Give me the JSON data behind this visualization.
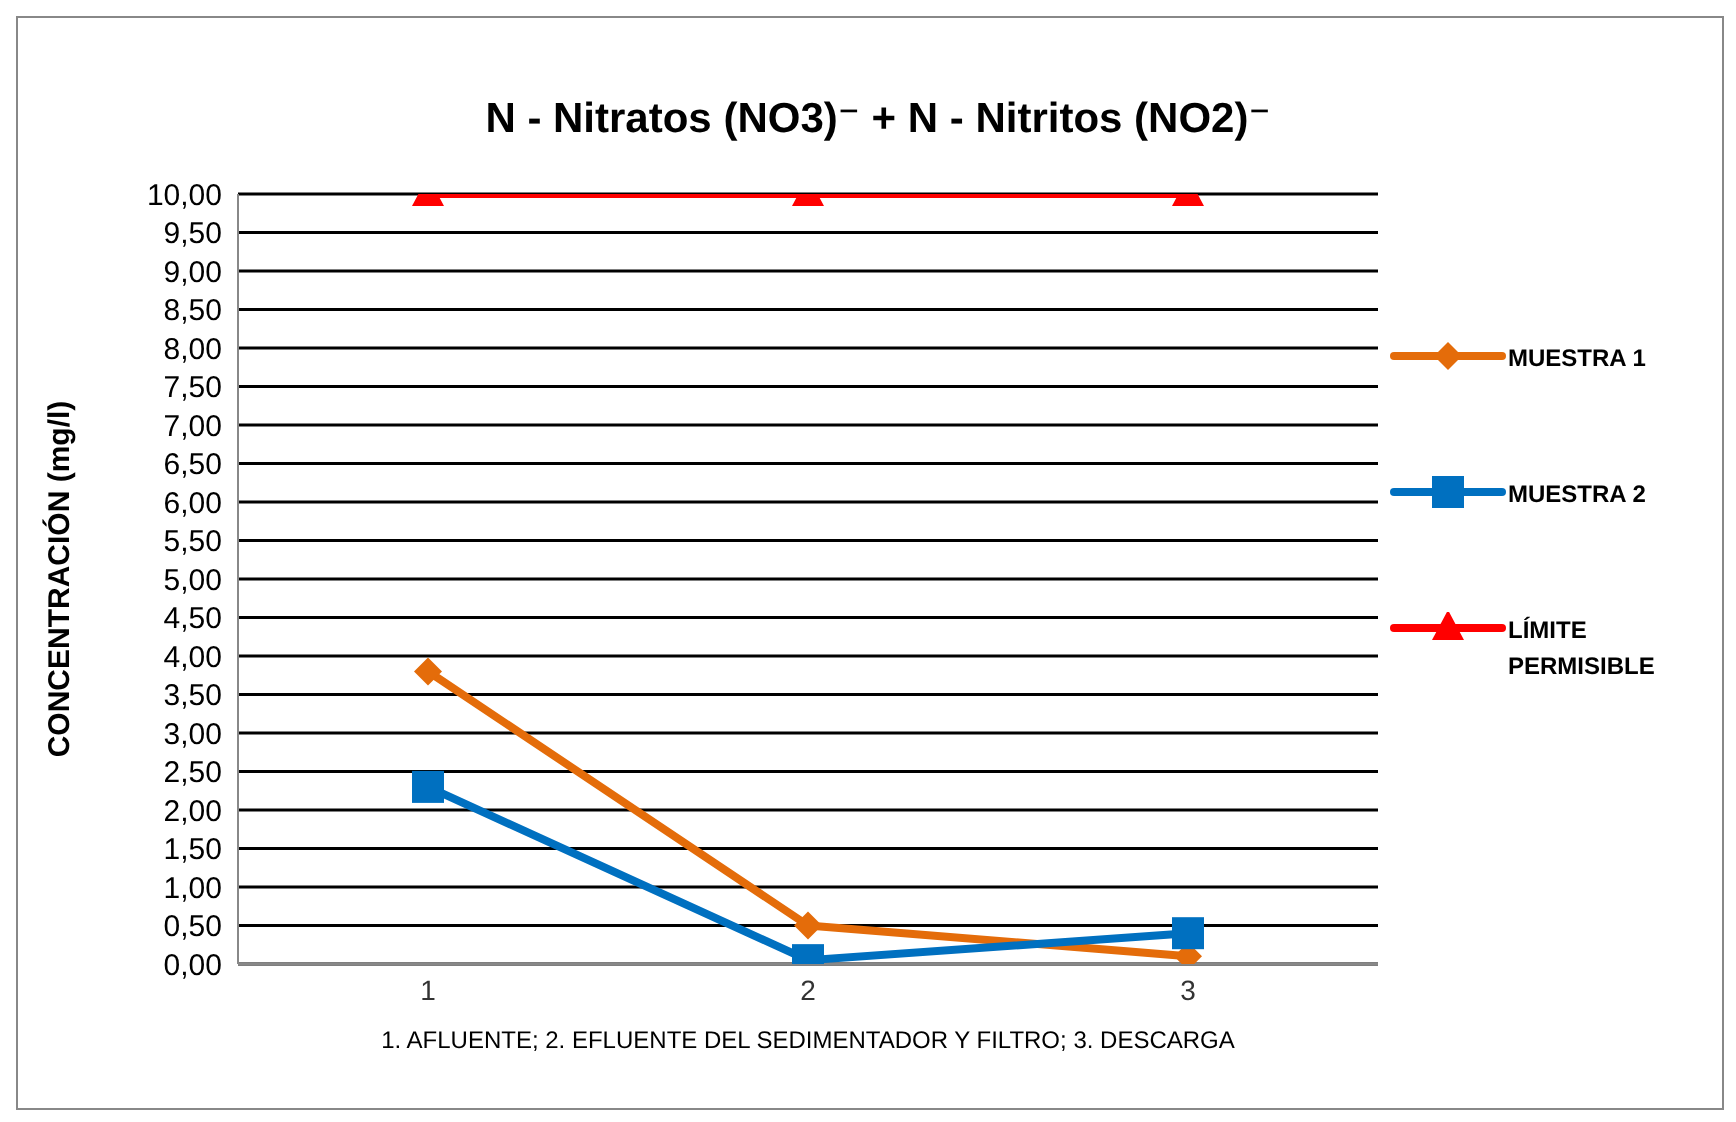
{
  "chart_data": {
    "type": "line",
    "title": "N - Nitratos (NO3)⁻  +  N - Nitritos (NO2)⁻",
    "xlabel": "1. AFLUENTE; 2. EFLUENTE DEL SEDIMENTADOR Y FILTRO; 3. DESCARGA",
    "ylabel": "CONCENTRACIÓN  (mg/l)",
    "categories": [
      "1",
      "2",
      "3"
    ],
    "series": [
      {
        "name": "MUESTRA 1",
        "color": "#e46c0a",
        "marker": "diamond",
        "values": [
          3.8,
          0.5,
          0.1
        ]
      },
      {
        "name": "MUESTRA 2",
        "color": "#0070c0",
        "marker": "square",
        "values": [
          2.3,
          0.05,
          0.4
        ]
      },
      {
        "name": "LÍMITE PERMISIBLE",
        "color": "#ff0000",
        "marker": "triangle",
        "values": [
          10,
          10,
          10
        ]
      }
    ],
    "ylim": [
      0,
      10
    ],
    "yticks": [
      {
        "value": 0,
        "label": "0,00"
      },
      {
        "value": 0.5,
        "label": "0,50"
      },
      {
        "value": 1,
        "label": "1,00"
      },
      {
        "value": 1.5,
        "label": "1,50"
      },
      {
        "value": 2,
        "label": "2,00"
      },
      {
        "value": 2.5,
        "label": "2,50"
      },
      {
        "value": 3,
        "label": "3,00"
      },
      {
        "value": 3.5,
        "label": "3,50"
      },
      {
        "value": 4,
        "label": "4,00"
      },
      {
        "value": 4.5,
        "label": "4,50"
      },
      {
        "value": 5,
        "label": "5,00"
      },
      {
        "value": 5.5,
        "label": "5,50"
      },
      {
        "value": 6,
        "label": "6,00"
      },
      {
        "value": 6.5,
        "label": "6,50"
      },
      {
        "value": 7,
        "label": "7,00"
      },
      {
        "value": 7.5,
        "label": "7,50"
      },
      {
        "value": 8,
        "label": "8,00"
      },
      {
        "value": 8.5,
        "label": "8,50"
      },
      {
        "value": 9,
        "label": "9,00"
      },
      {
        "value": 9.5,
        "label": "9,50"
      },
      {
        "value": 10,
        "label": "10,00"
      }
    ],
    "grid": "y",
    "legend": "right",
    "line_style": "solid"
  }
}
